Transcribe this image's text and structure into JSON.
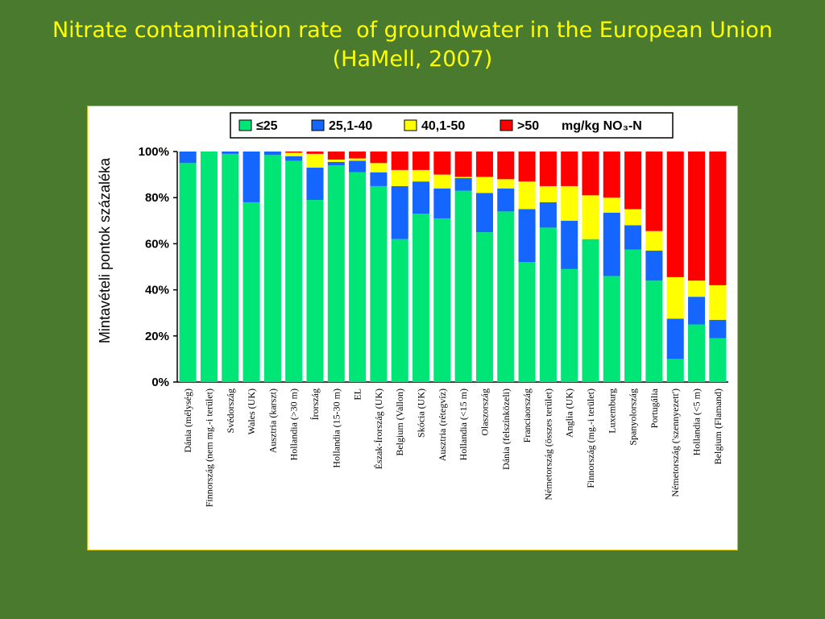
{
  "title": {
    "line1": "Nitrate contamination rate  of groundwater in the European Union",
    "line2": "(HaMell, 2007)"
  },
  "colors": {
    "background": "#4a7a2e",
    "title": "#ffff00",
    "series": [
      "#00e676",
      "#1565ff",
      "#ffff00",
      "#ff0000"
    ]
  },
  "chart_data": {
    "type": "bar",
    "stacked": true,
    "ylabel": "Mintavételi pontok százaléka",
    "xlabel": "",
    "ylim": [
      0,
      100
    ],
    "yticks": [
      "0%",
      "20%",
      "40%",
      "60%",
      "80%",
      "100%"
    ],
    "legend_position": "top",
    "legend_unit": "mg/kg NO₃-N",
    "categories": [
      "Dánia (mélység)",
      "Finnország (nem mg.-i terület)",
      "Svédország",
      "Wales (UK)",
      "Ausztria (karszt)",
      "Hollandia (>30 m)",
      "Írország",
      "Hollandia (15-30 m)",
      "EL",
      "Észak-Írország (UK)",
      "Belgium (Vallon)",
      "Skócia (UK)",
      "Ausztria (rétegvíz)",
      "Hollandia (<15 m)",
      "Olaszország",
      "Dánia (felszínközeli)",
      "Franciaország",
      "Németország (összes terület)",
      "Anglia (UK)",
      "Finnország (mg.-i terület)",
      "Luxemburg",
      "Spanyolország",
      "Portugália",
      "Németország ('szennyezett')",
      "Hollandia (<5 m)",
      "Belgium (Flamand)"
    ],
    "series": [
      {
        "name": "≤25",
        "values": [
          95,
          100,
          99,
          78,
          98.5,
          96,
          79,
          94,
          91,
          85,
          62,
          73,
          71,
          83,
          65,
          74,
          52,
          67,
          49,
          62,
          46,
          57.5,
          44,
          10,
          25,
          19
        ]
      },
      {
        "name": "25,1-40",
        "values": [
          5,
          0,
          1,
          22,
          1.5,
          2,
          14,
          1.5,
          5,
          6,
          23,
          14,
          13,
          5.5,
          17,
          10,
          23,
          11,
          21,
          0,
          27.5,
          10.5,
          13,
          17.5,
          12,
          8
        ]
      },
      {
        "name": "40,1-50",
        "values": [
          0,
          0,
          0,
          0,
          0,
          1.5,
          6,
          1,
          1,
          4,
          7,
          5,
          6,
          0.5,
          7,
          4,
          12,
          7,
          15,
          19,
          6.5,
          7,
          8.5,
          18,
          7,
          15
        ]
      },
      {
        "name": ">50",
        "values": [
          0,
          0,
          0,
          0,
          0,
          0.5,
          1,
          3.5,
          3,
          5,
          8,
          8,
          10,
          11,
          11,
          12,
          13,
          15,
          15,
          19,
          20,
          25,
          34.5,
          54.5,
          56,
          58
        ]
      }
    ]
  }
}
